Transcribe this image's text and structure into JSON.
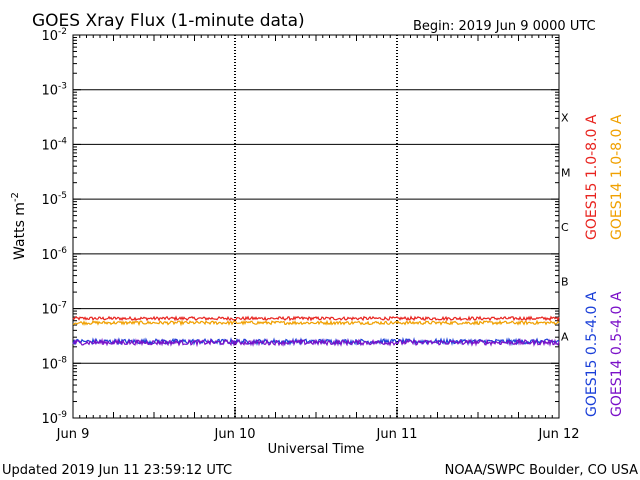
{
  "header": {
    "title": "GOES Xray Flux (1-minute data)",
    "begin": "Begin:  2019 Jun 9 0000 UTC"
  },
  "footer": {
    "updated": "Updated 2019 Jun 11 23:59:12 UTC",
    "credit": "NOAA/SWPC Boulder, CO USA"
  },
  "chart_data": {
    "type": "line",
    "title": "GOES Xray Flux (1-minute data)",
    "xlabel": "Universal Time",
    "ylabel": "Watts m-2",
    "y_scale": "log",
    "ylim": [
      1e-09,
      0.01
    ],
    "xlim": [
      0,
      3
    ],
    "x_unit": "days since 2019 Jun 9 0000 UTC",
    "x_ticks": [
      {
        "value": 0,
        "label": "Jun 9"
      },
      {
        "value": 1,
        "label": "Jun 10"
      },
      {
        "value": 2,
        "label": "Jun 11"
      },
      {
        "value": 3,
        "label": "Jun 12"
      }
    ],
    "y_ticks": [
      {
        "value": 0.01,
        "base": "10",
        "exp": "-2"
      },
      {
        "value": 0.001,
        "base": "10",
        "exp": "-3"
      },
      {
        "value": 0.0001,
        "base": "10",
        "exp": "-4"
      },
      {
        "value": 1e-05,
        "base": "10",
        "exp": "-5"
      },
      {
        "value": 1e-06,
        "base": "10",
        "exp": "-6"
      },
      {
        "value": 1e-07,
        "base": "10",
        "exp": "-7"
      },
      {
        "value": 1e-08,
        "base": "10",
        "exp": "-8"
      },
      {
        "value": 1e-09,
        "base": "10",
        "exp": "-9"
      }
    ],
    "flare_classes": [
      {
        "label": "X",
        "value": 0.00031
      },
      {
        "label": "M",
        "value": 3.1e-05
      },
      {
        "label": "C",
        "value": 3.1e-06
      },
      {
        "label": "B",
        "value": 3.1e-07
      },
      {
        "label": "A",
        "value": 3.1e-08
      }
    ],
    "grid": "horizontal lines at each decade from 1e-8 to 1e-3",
    "series": [
      {
        "name": "GOES15 1.0-8.0 A",
        "color": "#e8241f",
        "value": 6.6e-08
      },
      {
        "name": "GOES14 1.0-8.0 A",
        "color": "#f0a000",
        "value": 5.5e-08
      },
      {
        "name": "GOES15 0.5-4.0 A",
        "color": "#1a3fd8",
        "value": 2.5e-08
      },
      {
        "name": "GOES14 0.5-4.0 A",
        "color": "#7a10c8",
        "value": 2.4e-08
      }
    ]
  }
}
